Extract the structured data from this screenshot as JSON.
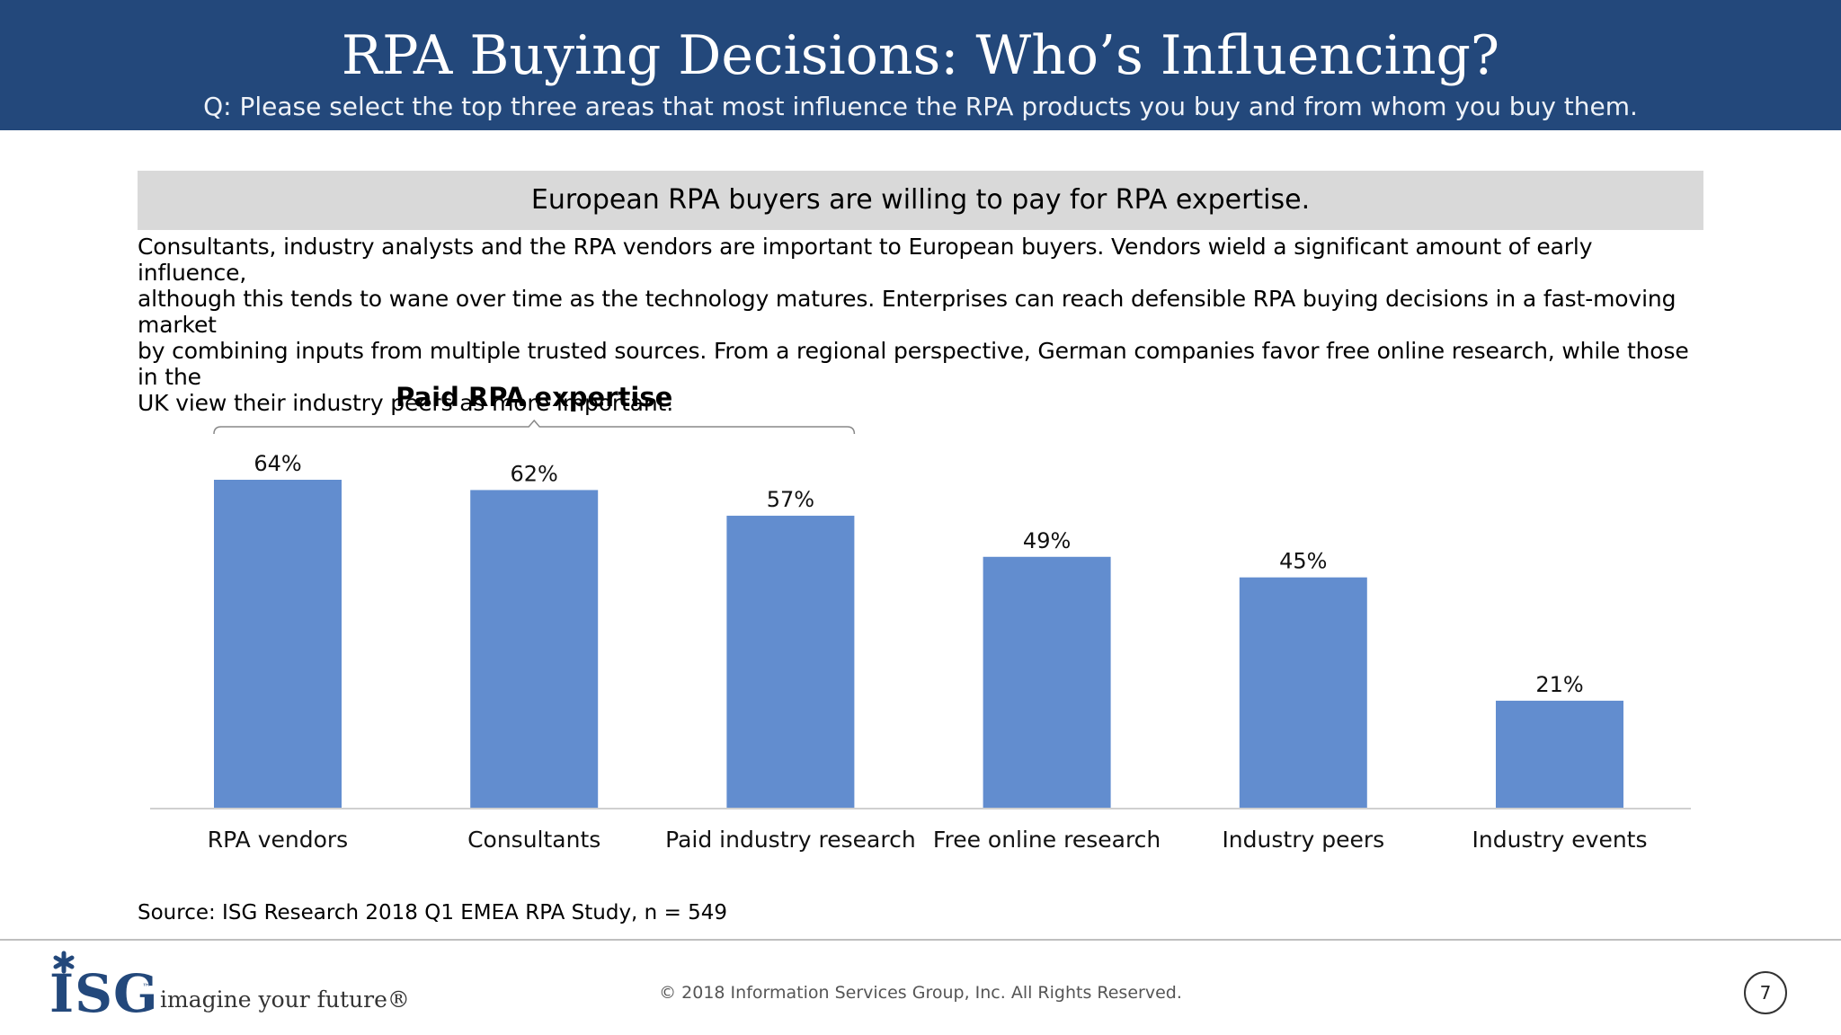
{
  "header": {
    "title": "RPA Buying Decisions: Who’s Influencing?",
    "question": "Q: Please select the top three areas that most influence the RPA products you buy and from whom you buy them."
  },
  "banner": "European RPA buyers are willing to pay for RPA expertise.",
  "body_text": "Consultants, industry analysts and the RPA vendors are important to European buyers. Vendors wield a significant amount of early influence,\nalthough this tends to wane over time as the technology matures. Enterprises can reach defensible RPA buying decisions in a fast-moving market\nby combining inputs from multiple trusted sources. From a regional perspective, German companies favor free online research, while those in the\nUK view their industry peers as more important.",
  "chart_data": {
    "type": "bar",
    "categories": [
      "RPA vendors",
      "Consultants",
      "Paid industry research",
      "Free online research",
      "Industry peers",
      "Industry events"
    ],
    "values": [
      64,
      62,
      57,
      49,
      45,
      21
    ],
    "value_labels": [
      "64%",
      "62%",
      "57%",
      "49%",
      "45%",
      "21%"
    ],
    "annotation": {
      "text": "Paid RPA expertise",
      "spans": [
        "RPA vendors",
        "Consultants",
        "Paid industry research"
      ]
    },
    "ylim": [
      0,
      64
    ],
    "grid": false,
    "legend": "none",
    "bar_color": "#628dcf"
  },
  "source": "Source: ISG Research 2018 Q1 EMEA RPA Study, n = 549",
  "footer": {
    "logo_text": "ISG",
    "tm": "™",
    "tagline": "imagine your future®",
    "copyright": "© 2018 Information Services Group, Inc.  All Rights Reserved.",
    "page_number": "7"
  },
  "colors": {
    "header_bg": "#23487b",
    "banner_bg": "#d9d9d9",
    "bar": "#628dcf"
  }
}
